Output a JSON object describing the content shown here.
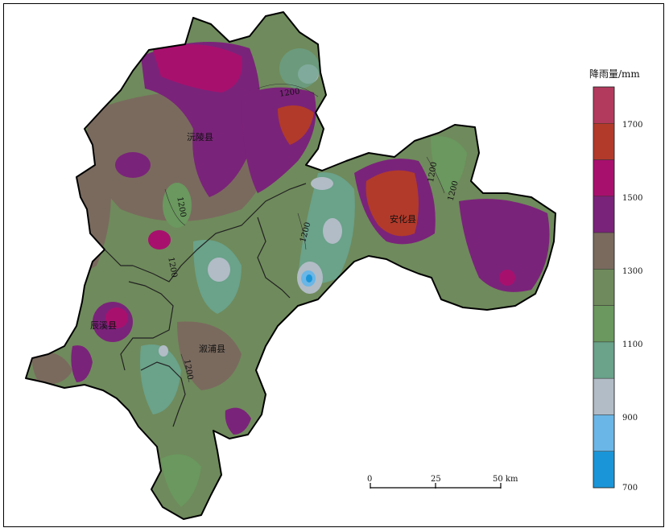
{
  "map": {
    "counties": [
      {
        "key": "yuanling",
        "name": "沅陵县"
      },
      {
        "key": "anhua",
        "name": "安化县"
      },
      {
        "key": "chenxi",
        "name": "辰溪县"
      },
      {
        "key": "xupu",
        "name": "溆浦县"
      }
    ],
    "contour_labels": [
      "1200",
      "1200",
      "1200",
      "1200",
      "1200",
      "1200",
      "1200"
    ]
  },
  "legend": {
    "title": "降雨量/mm",
    "tick_labels": [
      "1700",
      "1500",
      "1300",
      "1100",
      "900",
      "700"
    ],
    "bins": [
      {
        "range": "1700-1800",
        "color": "#b23a5c"
      },
      {
        "range": "1600-1700",
        "color": "#b23a2a"
      },
      {
        "range": "1500-1600",
        "color": "#a8106e"
      },
      {
        "range": "1400-1500",
        "color": "#7a237a"
      },
      {
        "range": "1300-1400",
        "color": "#7a6a5e"
      },
      {
        "range": "1200-1300",
        "color": "#6f8a5c"
      },
      {
        "range": "1100-1200",
        "color": "#6a985e"
      },
      {
        "range": "1000-1100",
        "color": "#6aa28a"
      },
      {
        "range": "900-1000",
        "color": "#b1bcc6"
      },
      {
        "range": "800-900",
        "color": "#6ab6e6"
      },
      {
        "range": "700-800",
        "color": "#1a96d8"
      }
    ]
  },
  "scale_bar": {
    "labels": [
      "0",
      "25",
      "50 km"
    ]
  }
}
